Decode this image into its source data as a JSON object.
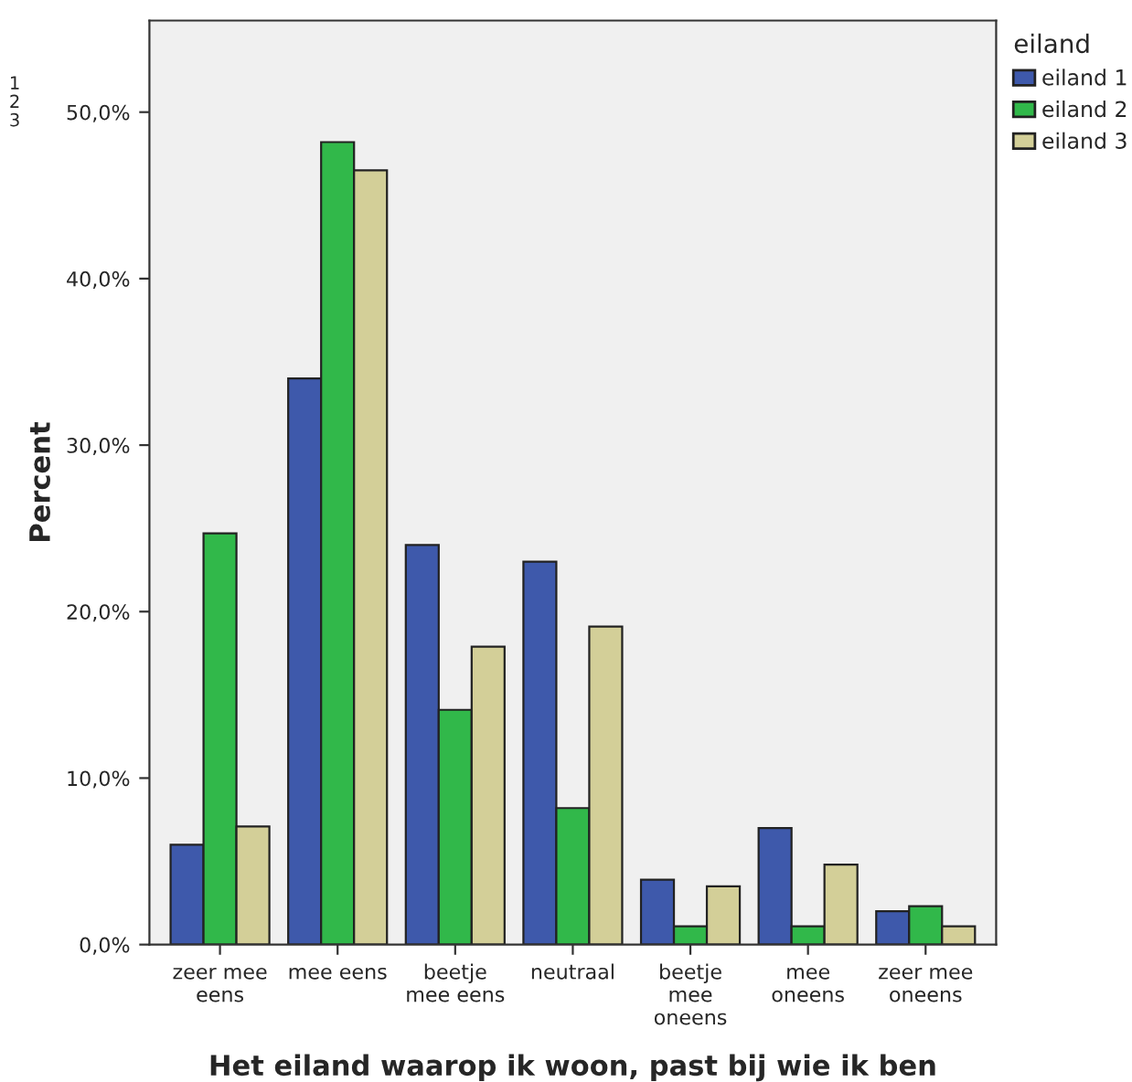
{
  "chart_data": {
    "type": "bar",
    "xlabel": "Het eiland waarop ik woon, past bij wie ik ben",
    "ylabel": "Percent",
    "legend_title": "eiland",
    "legend": "top right",
    "categories": [
      "zeer mee\neens",
      "mee eens",
      "beetje\nmee eens",
      "neutraal",
      "beetje\nmee\noneens",
      "mee\noneens",
      "zeer mee\noneens"
    ],
    "series": [
      {
        "name": "eiland 1",
        "color": "#3e59ab",
        "values": [
          6.0,
          34.0,
          24.0,
          23.0,
          3.9,
          7.0,
          2.0
        ]
      },
      {
        "name": "eiland 2",
        "color": "#31b84a",
        "values": [
          24.7,
          48.2,
          14.1,
          8.2,
          1.1,
          1.1,
          2.3
        ]
      },
      {
        "name": "eiland 3",
        "color": "#d3cf98",
        "values": [
          7.1,
          46.5,
          17.9,
          19.1,
          3.5,
          4.8,
          1.1
        ]
      }
    ],
    "ylim": [
      0,
      55.5
    ],
    "yticks": [
      {
        "value": 0,
        "label": "0,0%"
      },
      {
        "value": 10,
        "label": "10,0%"
      },
      {
        "value": 20,
        "label": "20,0%"
      },
      {
        "value": 30,
        "label": "30,0%"
      },
      {
        "value": 40,
        "label": "40,0%"
      },
      {
        "value": 50,
        "label": "50,0%"
      }
    ],
    "grid": false,
    "annotations": [
      "1\n2\n3"
    ]
  }
}
